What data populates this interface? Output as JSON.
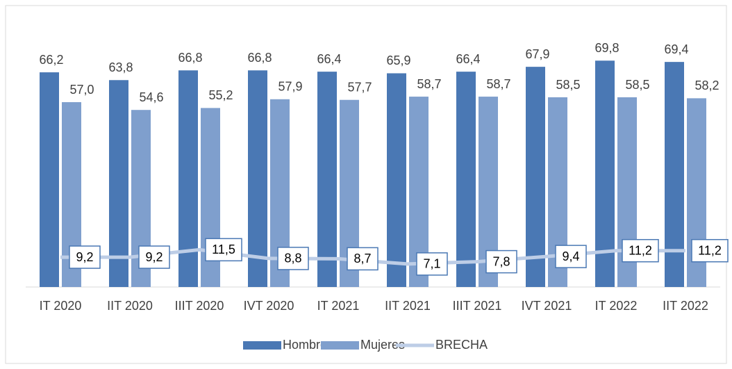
{
  "chart_data": {
    "type": "bar",
    "categories": [
      "IT 2020",
      "IIT 2020",
      "IIIT 2020",
      "IVT 2020",
      "IT 2021",
      "IIT 2021",
      "IIIT 2021",
      "IVT 2021",
      "IT 2022",
      "IIT 2022"
    ],
    "series": [
      {
        "name": "Hombres",
        "type": "bar",
        "color": "#4a78b4",
        "values": [
          66.2,
          63.8,
          66.8,
          66.8,
          66.4,
          65.9,
          66.4,
          67.9,
          69.8,
          69.4
        ],
        "value_labels": [
          "66,2",
          "63,8",
          "66,8",
          "66,8",
          "66,4",
          "65,9",
          "66,4",
          "67,9",
          "69,8",
          "69,4"
        ]
      },
      {
        "name": "Mujeres",
        "type": "bar",
        "color": "#7f9fcd",
        "values": [
          57.0,
          54.6,
          55.2,
          57.9,
          57.7,
          58.7,
          58.7,
          58.5,
          58.5,
          58.2
        ],
        "value_labels": [
          "57,0",
          "54,6",
          "55,2",
          "57,9",
          "57,7",
          "58,7",
          "58,7",
          "58,5",
          "58,5",
          "58,2"
        ]
      },
      {
        "name": "BRECHA",
        "type": "line",
        "color": "#bdcde6",
        "values": [
          9.2,
          9.2,
          11.5,
          8.8,
          8.7,
          7.1,
          7.8,
          9.4,
          11.2,
          11.2
        ],
        "value_labels": [
          "9,2",
          "9,2",
          "11,5",
          "8,8",
          "8,7",
          "7,1",
          "7,8",
          "9,4",
          "11,2",
          "11,2"
        ]
      }
    ],
    "ylim": [
      0,
      84
    ],
    "legend": "bottom"
  }
}
